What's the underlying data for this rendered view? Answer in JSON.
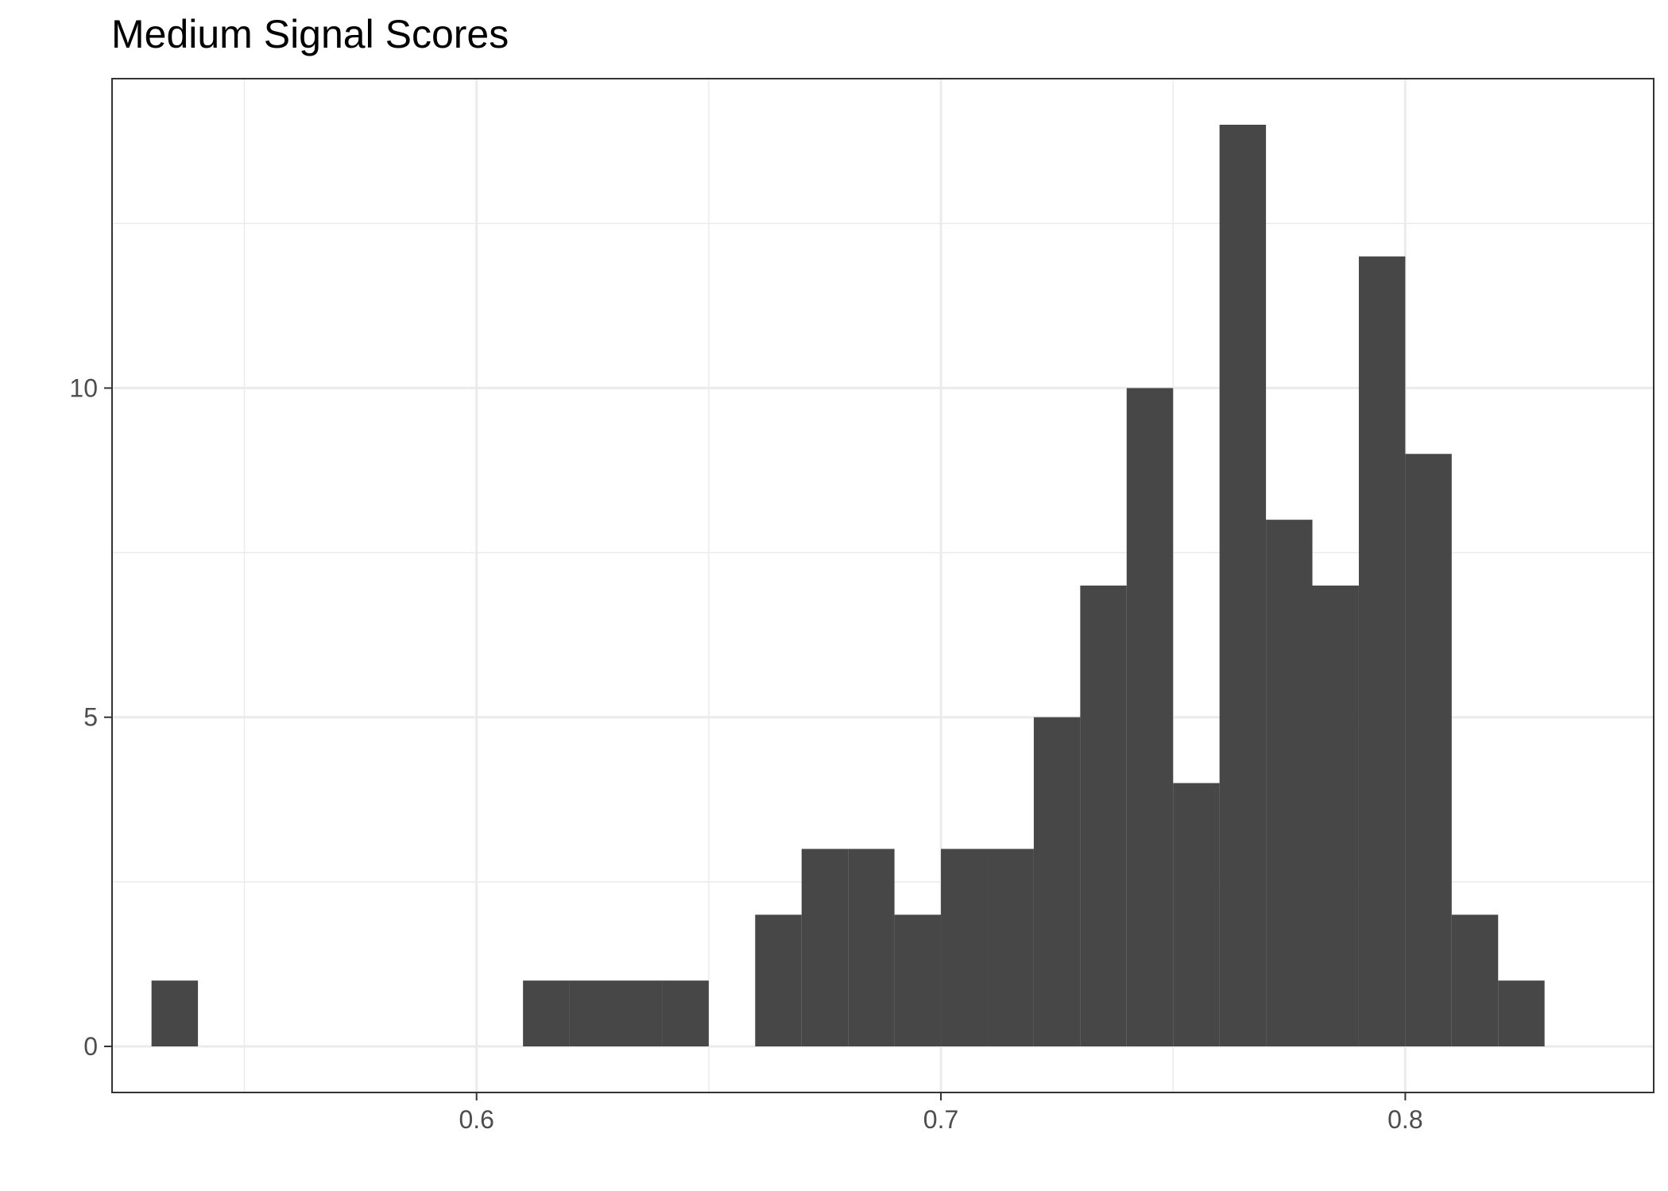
{
  "chart_data": {
    "type": "bar",
    "title": "Medium Signal Scores",
    "xlabel": "",
    "ylabel": "",
    "bin_width": 0.01,
    "bins": [
      {
        "x0": 0.53,
        "x1": 0.54,
        "count": 1
      },
      {
        "x0": 0.54,
        "x1": 0.55,
        "count": 0
      },
      {
        "x0": 0.55,
        "x1": 0.56,
        "count": 0
      },
      {
        "x0": 0.56,
        "x1": 0.57,
        "count": 0
      },
      {
        "x0": 0.57,
        "x1": 0.58,
        "count": 0
      },
      {
        "x0": 0.58,
        "x1": 0.59,
        "count": 0
      },
      {
        "x0": 0.59,
        "x1": 0.6,
        "count": 0
      },
      {
        "x0": 0.6,
        "x1": 0.61,
        "count": 0
      },
      {
        "x0": 0.61,
        "x1": 0.62,
        "count": 1
      },
      {
        "x0": 0.62,
        "x1": 0.63,
        "count": 1
      },
      {
        "x0": 0.63,
        "x1": 0.64,
        "count": 1
      },
      {
        "x0": 0.64,
        "x1": 0.65,
        "count": 1
      },
      {
        "x0": 0.65,
        "x1": 0.66,
        "count": 0
      },
      {
        "x0": 0.66,
        "x1": 0.67,
        "count": 2
      },
      {
        "x0": 0.67,
        "x1": 0.68,
        "count": 3
      },
      {
        "x0": 0.68,
        "x1": 0.69,
        "count": 3
      },
      {
        "x0": 0.69,
        "x1": 0.7,
        "count": 2
      },
      {
        "x0": 0.7,
        "x1": 0.71,
        "count": 3
      },
      {
        "x0": 0.71,
        "x1": 0.72,
        "count": 3
      },
      {
        "x0": 0.72,
        "x1": 0.73,
        "count": 5
      },
      {
        "x0": 0.73,
        "x1": 0.74,
        "count": 7
      },
      {
        "x0": 0.74,
        "x1": 0.75,
        "count": 10
      },
      {
        "x0": 0.75,
        "x1": 0.76,
        "count": 4
      },
      {
        "x0": 0.76,
        "x1": 0.77,
        "count": 14
      },
      {
        "x0": 0.77,
        "x1": 0.78,
        "count": 8
      },
      {
        "x0": 0.78,
        "x1": 0.79,
        "count": 7
      },
      {
        "x0": 0.79,
        "x1": 0.8,
        "count": 12
      },
      {
        "x0": 0.8,
        "x1": 0.81,
        "count": 9
      },
      {
        "x0": 0.81,
        "x1": 0.82,
        "count": 2
      },
      {
        "x0": 0.82,
        "x1": 0.83,
        "count": 1
      }
    ],
    "xlim": [
      0.5215,
      0.8535
    ],
    "ylim": [
      -0.7,
      14.7
    ],
    "x_ticks": [
      0.6,
      0.7,
      0.8
    ],
    "x_tick_labels": [
      "0.6",
      "0.7",
      "0.8"
    ],
    "x_minor_grid": [
      0.55,
      0.65,
      0.75
    ],
    "y_ticks": [
      0,
      5,
      10
    ],
    "y_tick_labels": [
      "0",
      "5",
      "10"
    ],
    "y_minor_grid": [
      2.5,
      7.5,
      12.5
    ],
    "grid": true,
    "legend": "none",
    "colors": {
      "bar": "#474747",
      "grid": "#ebebeb",
      "panel_border": "#333333",
      "tick_label": "#4d4d4d",
      "tick_mark": "#333333"
    }
  }
}
